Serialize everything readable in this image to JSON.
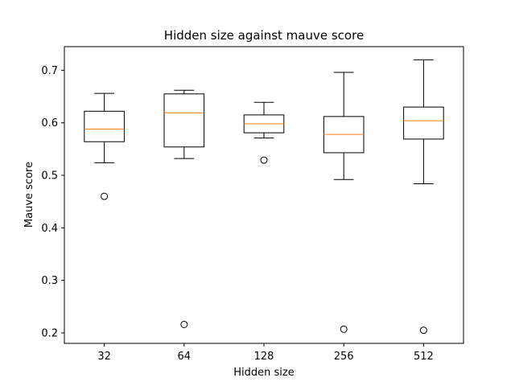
{
  "chart_data": {
    "type": "box",
    "title": "Hidden size against mauve score",
    "xlabel": "Hidden size",
    "ylabel": "Mauve score",
    "ylim": [
      0.18,
      0.745
    ],
    "yticks": [
      0.2,
      0.3,
      0.4,
      0.5,
      0.6,
      0.7
    ],
    "ytick_labels": [
      "0.2",
      "0.3",
      "0.4",
      "0.5",
      "0.6",
      "0.7"
    ],
    "grid": false,
    "legend": "none",
    "categories": [
      "32",
      "64",
      "128",
      "256",
      "512"
    ],
    "boxes": [
      {
        "category": "32",
        "whisker_low": 0.524,
        "q1": 0.564,
        "median": 0.588,
        "q3": 0.622,
        "whisker_high": 0.656,
        "outliers": [
          0.46
        ]
      },
      {
        "category": "64",
        "whisker_low": 0.532,
        "q1": 0.554,
        "median": 0.619,
        "q3": 0.655,
        "whisker_high": 0.662,
        "outliers": [
          0.216
        ]
      },
      {
        "category": "128",
        "whisker_low": 0.571,
        "q1": 0.581,
        "median": 0.598,
        "q3": 0.615,
        "whisker_high": 0.639,
        "outliers": [
          0.529
        ]
      },
      {
        "category": "256",
        "whisker_low": 0.492,
        "q1": 0.543,
        "median": 0.578,
        "q3": 0.612,
        "whisker_high": 0.696,
        "outliers": [
          0.207
        ]
      },
      {
        "category": "512",
        "whisker_low": 0.484,
        "q1": 0.569,
        "median": 0.604,
        "q3": 0.63,
        "whisker_high": 0.72,
        "outliers": [
          0.205
        ]
      }
    ],
    "colors": {
      "box": "#000000",
      "median": "#ff7f0e",
      "outlier_edge": "#000000"
    }
  }
}
